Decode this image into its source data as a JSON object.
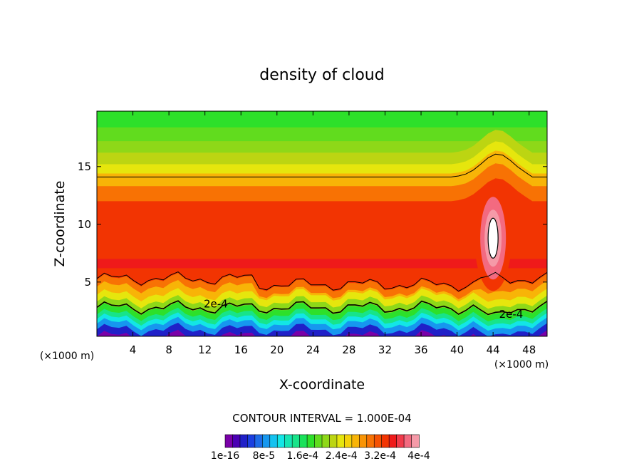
{
  "chart_data": {
    "type": "heatmap",
    "title": "density of cloud",
    "xlabel": "X-coordinate",
    "ylabel": "Z-coordinate",
    "x_unit": "(×1000 m)",
    "x_unit_right": "(×1000 m)",
    "xlim": [
      0,
      50
    ],
    "ylim": [
      0.3,
      19.8
    ],
    "xticks": [
      4,
      8,
      12,
      16,
      20,
      24,
      28,
      32,
      36,
      40,
      44,
      48
    ],
    "yticks": [
      5,
      10,
      15
    ],
    "contour_interval_text": "CONTOUR INTERVAL = 1.000E-04",
    "contour_labels": [
      {
        "text": "2e-4",
        "x": 13.2,
        "z": 3.1
      },
      {
        "text": "2e-4",
        "x": 46.0,
        "z": 2.2
      }
    ],
    "colorbar": {
      "colors": [
        "#7a00a8",
        "#4b00b4",
        "#2020c8",
        "#1a3fe0",
        "#1d6be8",
        "#1697ef",
        "#14c2f0",
        "#13e6e6",
        "#15e5b4",
        "#17e48a",
        "#19e25a",
        "#2de02a",
        "#61dc1e",
        "#8ed818",
        "#bcd512",
        "#e6e60d",
        "#f5d20a",
        "#f8b407",
        "#f99405",
        "#f87204",
        "#f55203",
        "#f23402",
        "#ef1a1a",
        "#f13a4a",
        "#f36a80",
        "#f59aa8"
      ],
      "tick_labels": [
        "1e-16",
        "8e-5",
        "1.6e-4",
        "2.4e-4",
        "3.2e-4",
        "4e-4"
      ]
    }
  }
}
